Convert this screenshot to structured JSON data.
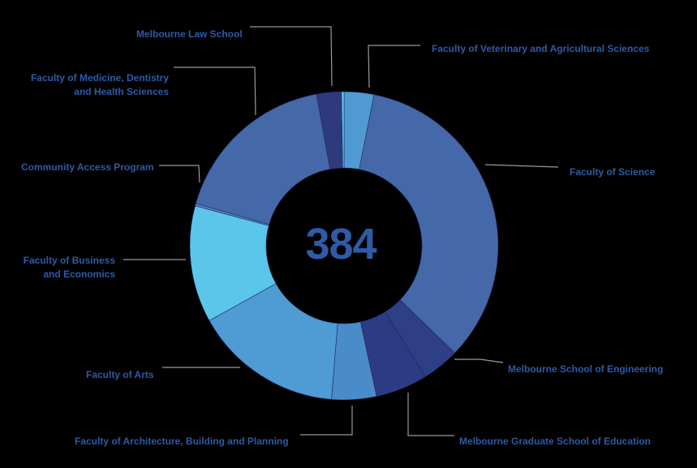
{
  "chart_data": {
    "type": "donut",
    "center_label": "384",
    "slices": [
      {
        "label": "Faculty of Veterinary and Agricultural Sciences",
        "value": 12,
        "color": "#4f9ad2"
      },
      {
        "label": "Faculty of Science",
        "value": 131,
        "color": "#4568a8"
      },
      {
        "label": "Melbourne School of Engineering",
        "value": 15,
        "color": "#2f3f86"
      },
      {
        "label": "Melbourne Graduate School of Education",
        "value": 21,
        "color": "#2d3a84"
      },
      {
        "label": "Faculty of Architecture, Building and Planning",
        "value": 18,
        "color": "#4a8bc9"
      },
      {
        "label": "Faculty of Arts",
        "value": 60,
        "color": "#4f9bd4"
      },
      {
        "label": "Faculty of Business and Economics",
        "value": 47,
        "color": "#5cc6ea"
      },
      {
        "label": "Community Access Program",
        "value": 1,
        "color": "#4e82c2"
      },
      {
        "label": "Faculty of Medicine, Dentistry and Health Sciences",
        "value": 68,
        "color": "#4568a8"
      },
      {
        "label": "Melbourne Law School",
        "value": 10,
        "color": "#2f3a7c"
      },
      {
        "label": "",
        "value": 1,
        "color": "#5fd0f0"
      }
    ]
  },
  "labels": {
    "law": "Melbourne Law School",
    "vet": "Faculty of Veterinary and Agricultural Sciences",
    "med_1": "Faculty of Medicine, Dentistry",
    "med_2": "and Health Sciences",
    "science": "Faculty of Science",
    "cap": "Community Access Program",
    "fbe_1": "Faculty of Business",
    "fbe_2": "and Economics",
    "eng": "Melbourne School of Engineering",
    "arts": "Faculty of Arts",
    "abp": "Faculty of Architecture, Building and Planning",
    "edu": "Melbourne Graduate School of Education"
  }
}
